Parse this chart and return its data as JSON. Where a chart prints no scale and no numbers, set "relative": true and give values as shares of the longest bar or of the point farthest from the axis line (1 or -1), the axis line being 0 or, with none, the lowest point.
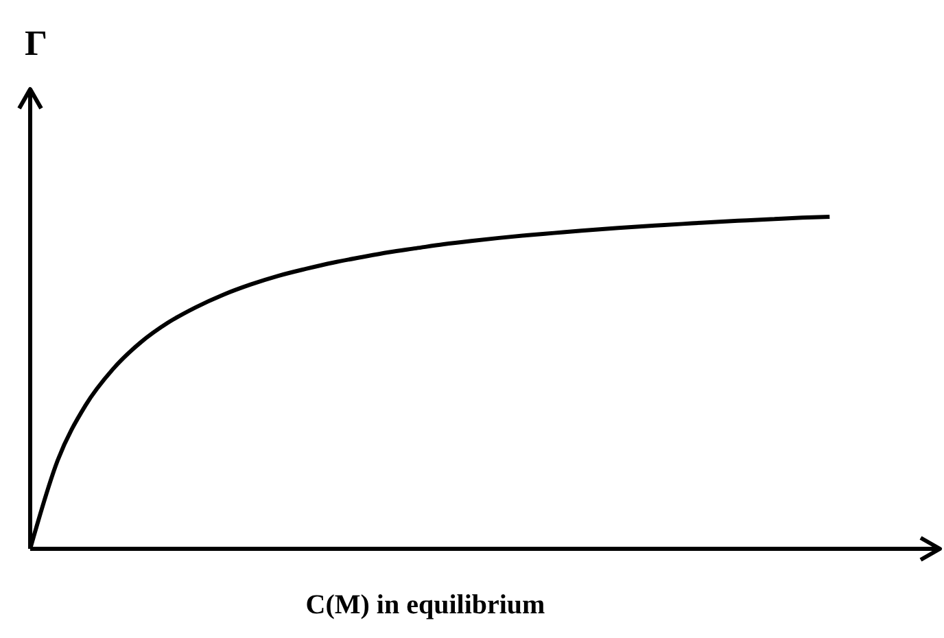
{
  "chart_data": {
    "type": "line",
    "relative": true,
    "xlabel": "C(M) in equilibrium",
    "ylabel": "Γ",
    "color": "#000000",
    "categories": [
      null,
      null,
      null,
      null,
      null,
      null,
      null,
      null,
      null,
      null,
      null,
      null,
      null,
      null,
      null,
      null,
      null,
      null,
      null,
      null,
      null,
      null,
      null,
      null,
      null,
      null,
      null,
      null,
      null,
      null,
      null,
      null,
      null,
      null
    ],
    "values": [
      0,
      0.267,
      0.431,
      0.541,
      0.621,
      0.681,
      0.727,
      0.765,
      0.796,
      0.822,
      0.843,
      0.862,
      0.878,
      0.893,
      0.905,
      0.917,
      0.927,
      0.936,
      0.944,
      0.951,
      0.958,
      0.964,
      0.97,
      0.975,
      0.98,
      0.985,
      0.989,
      0.993,
      0.997,
      1,
      null,
      null,
      null,
      null
    ]
  }
}
